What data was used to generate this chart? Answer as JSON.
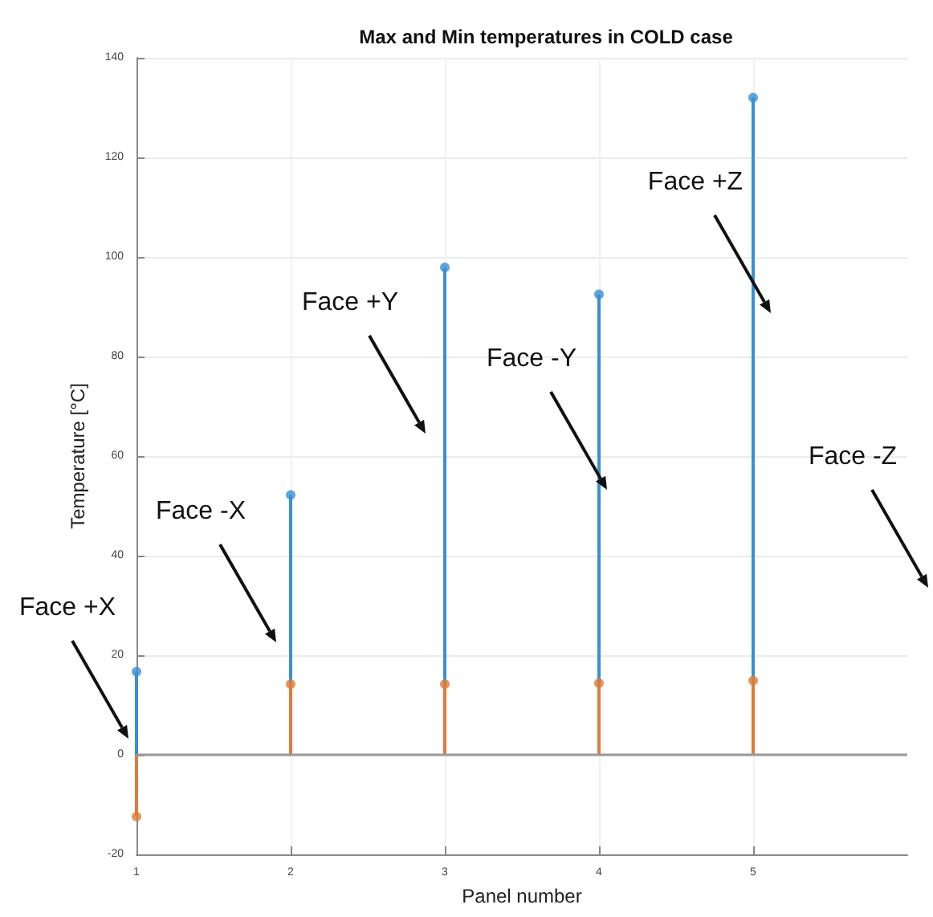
{
  "chart_data": {
    "type": "lollipop",
    "title": "Max and Min temperatures in COLD case",
    "xlabel": "Panel number",
    "ylabel": "Temperature [°C]",
    "x": [
      1,
      2,
      3,
      4,
      5
    ],
    "series": [
      {
        "color": "#3a8fd6",
        "values": [
          16.7,
          52.2,
          97.9,
          92.5,
          132
        ]
      },
      {
        "color": "#e07b39",
        "values": [
          -12.4,
          14.2,
          14.2,
          14.4,
          14.9
        ]
      }
    ],
    "xlim": [
      1,
      6
    ],
    "xticks": [
      1,
      2,
      3,
      4,
      5
    ],
    "ylim": [
      -20,
      140
    ],
    "yticks": [
      -20,
      0,
      20,
      40,
      60,
      80,
      100,
      120,
      140
    ],
    "ref_lines": [
      {
        "axis": "y",
        "value": 0,
        "color": "#9a9a9a"
      }
    ],
    "annotations": [
      "Face +X",
      "Face -X",
      "Face +Y",
      "Face -Y",
      "Face +Z",
      "Face -Z"
    ],
    "grid": true,
    "marker": "circle"
  }
}
